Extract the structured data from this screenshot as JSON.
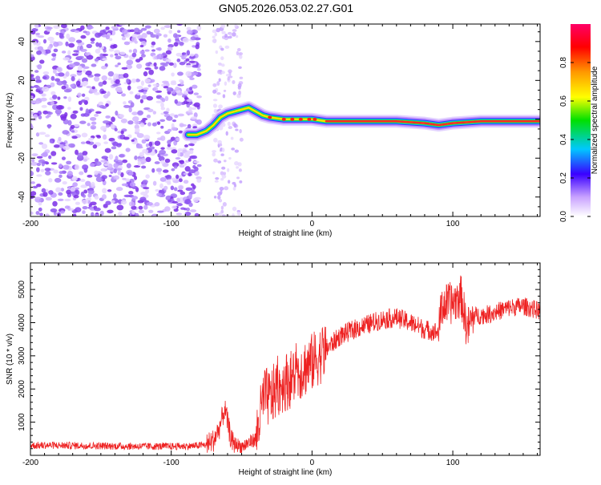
{
  "title": "GN05.2026.053.02.27.G01",
  "chart_data": [
    {
      "type": "heatmap",
      "name": "spectrogram",
      "xlabel": "Height of straight line (km)",
      "ylabel": "Frequency (Hz)",
      "xlim": [
        -200,
        162
      ],
      "ylim": [
        -50,
        49
      ],
      "xticks": [
        -200,
        -100,
        0,
        100
      ],
      "yticks": [
        -40,
        -20,
        0,
        20,
        40
      ],
      "ridge": [
        {
          "x": -88,
          "y": -8
        },
        {
          "x": -82,
          "y": -8
        },
        {
          "x": -75,
          "y": -6
        },
        {
          "x": -70,
          "y": -3
        },
        {
          "x": -65,
          "y": 1
        },
        {
          "x": -60,
          "y": 3
        },
        {
          "x": -55,
          "y": 4
        },
        {
          "x": -50,
          "y": 5
        },
        {
          "x": -45,
          "y": 6
        },
        {
          "x": -40,
          "y": 4
        },
        {
          "x": -35,
          "y": 2
        },
        {
          "x": -30,
          "y": 1
        },
        {
          "x": -20,
          "y": 0
        },
        {
          "x": -10,
          "y": 0
        },
        {
          "x": 0,
          "y": 0
        },
        {
          "x": 10,
          "y": -1
        },
        {
          "x": 30,
          "y": -1
        },
        {
          "x": 60,
          "y": -1
        },
        {
          "x": 80,
          "y": -2
        },
        {
          "x": 90,
          "y": -3
        },
        {
          "x": 100,
          "y": -2
        },
        {
          "x": 120,
          "y": -1
        },
        {
          "x": 162,
          "y": -1
        }
      ],
      "noise_region_x": [
        -200,
        -80
      ],
      "noise_band_x": [
        -70,
        -50
      ],
      "colorbar": {
        "label": "Normalized spectral amplitude",
        "ticks": [
          "0.0",
          "0.2",
          "0.4",
          "0.6",
          "0.8"
        ],
        "range": [
          0,
          1
        ]
      }
    },
    {
      "type": "line",
      "name": "snr",
      "xlabel": "Height of straight line (km)",
      "ylabel": "SNR (10 * v/v)",
      "xlim": [
        -200,
        162
      ],
      "ylim": [
        0,
        5800
      ],
      "xticks": [
        -200,
        -100,
        0,
        100
      ],
      "yticks": [
        1000,
        2000,
        3000,
        4000,
        5000
      ],
      "color": "#ee2222",
      "series": [
        {
          "name": "SNR",
          "points": [
            {
              "x": -200,
              "y": 300
            },
            {
              "x": -180,
              "y": 300
            },
            {
              "x": -160,
              "y": 290
            },
            {
              "x": -140,
              "y": 280
            },
            {
              "x": -120,
              "y": 270
            },
            {
              "x": -100,
              "y": 270
            },
            {
              "x": -85,
              "y": 280
            },
            {
              "x": -75,
              "y": 320
            },
            {
              "x": -70,
              "y": 450
            },
            {
              "x": -66,
              "y": 800
            },
            {
              "x": -62,
              "y": 1400
            },
            {
              "x": -60,
              "y": 1000
            },
            {
              "x": -57,
              "y": 400
            },
            {
              "x": -50,
              "y": 250
            },
            {
              "x": -40,
              "y": 500
            },
            {
              "x": -34,
              "y": 1800
            },
            {
              "x": -30,
              "y": 1700
            },
            {
              "x": -25,
              "y": 2000
            },
            {
              "x": -20,
              "y": 2200
            },
            {
              "x": -15,
              "y": 2300
            },
            {
              "x": -10,
              "y": 2500
            },
            {
              "x": 0,
              "y": 2800
            },
            {
              "x": 5,
              "y": 3000
            },
            {
              "x": 10,
              "y": 3200
            },
            {
              "x": 20,
              "y": 3600
            },
            {
              "x": 30,
              "y": 3800
            },
            {
              "x": 40,
              "y": 3950
            },
            {
              "x": 50,
              "y": 4100
            },
            {
              "x": 60,
              "y": 4150
            },
            {
              "x": 70,
              "y": 4000
            },
            {
              "x": 80,
              "y": 3800
            },
            {
              "x": 90,
              "y": 3700
            },
            {
              "x": 92,
              "y": 4500
            },
            {
              "x": 100,
              "y": 4600
            },
            {
              "x": 106,
              "y": 4800
            },
            {
              "x": 110,
              "y": 3800
            },
            {
              "x": 115,
              "y": 4200
            },
            {
              "x": 125,
              "y": 4250
            },
            {
              "x": 140,
              "y": 4450
            },
            {
              "x": 150,
              "y": 4500
            },
            {
              "x": 162,
              "y": 4350
            }
          ]
        }
      ]
    }
  ]
}
